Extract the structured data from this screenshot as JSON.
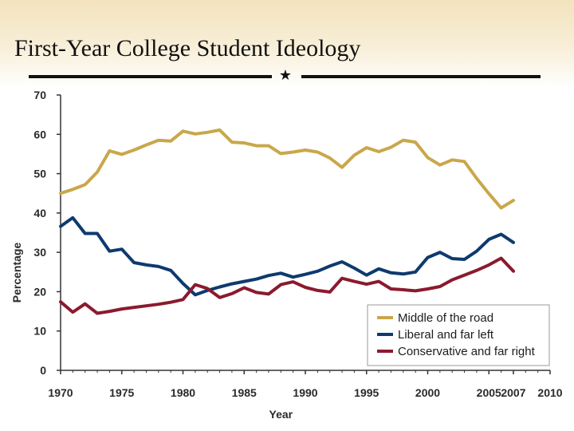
{
  "slide": {
    "title": "First-Year College Student Ideology",
    "star_icon": "★"
  },
  "chart_data": {
    "type": "line",
    "title": "",
    "xlabel": "Year",
    "ylabel": "Percentage",
    "xlim": [
      1970,
      2010
    ],
    "ylim": [
      0,
      70
    ],
    "x_ticks": [
      1970,
      1975,
      1980,
      1985,
      1990,
      1995,
      2000,
      2005,
      2007,
      2010
    ],
    "y_ticks": [
      0,
      10,
      20,
      30,
      40,
      50,
      60,
      70
    ],
    "legend_position": "bottom-right",
    "grid": false,
    "series": [
      {
        "name": "Middle of the road",
        "color": "#c9a74a",
        "x": [
          1970,
          1971,
          1972,
          1973,
          1974,
          1975,
          1976,
          1977,
          1978,
          1979,
          1980,
          1981,
          1982,
          1983,
          1984,
          1985,
          1986,
          1987,
          1988,
          1989,
          1990,
          1991,
          1992,
          1993,
          1994,
          1995,
          1996,
          1997,
          1998,
          1999,
          2000,
          2001,
          2002,
          2003,
          2004,
          2005,
          2006,
          2007
        ],
        "y": [
          45.0,
          46.0,
          47.2,
          50.4,
          55.8,
          54.9,
          56.0,
          57.3,
          58.5,
          58.3,
          60.8,
          60.1,
          60.5,
          61.1,
          58.0,
          57.8,
          57.1,
          57.1,
          55.1,
          55.5,
          56.0,
          55.5,
          54.0,
          51.6,
          54.7,
          56.6,
          55.6,
          56.7,
          58.5,
          58.0,
          54.1,
          52.2,
          53.5,
          53.1,
          48.8,
          44.9,
          41.3,
          43.2
        ]
      },
      {
        "name": "Liberal and far left",
        "color": "#0e3a6e",
        "x": [
          1970,
          1971,
          1972,
          1973,
          1974,
          1975,
          1976,
          1977,
          1978,
          1979,
          1980,
          1981,
          1982,
          1983,
          1984,
          1985,
          1986,
          1987,
          1988,
          1989,
          1990,
          1991,
          1992,
          1993,
          1994,
          1995,
          1996,
          1997,
          1998,
          1999,
          2000,
          2001,
          2002,
          2003,
          2004,
          2005,
          2006,
          2007
        ],
        "y": [
          36.6,
          38.8,
          34.8,
          34.8,
          30.3,
          30.8,
          27.4,
          26.8,
          26.4,
          25.4,
          22.1,
          19.2,
          20.3,
          21.2,
          22.0,
          22.6,
          23.2,
          24.1,
          24.7,
          23.7,
          24.4,
          25.2,
          26.5,
          27.6,
          26.0,
          24.2,
          25.8,
          24.8,
          24.5,
          25.0,
          28.7,
          30.0,
          28.4,
          28.2,
          30.3,
          33.3,
          34.6,
          32.5
        ]
      },
      {
        "name": "Conservative and far right",
        "color": "#8b1a2e",
        "x": [
          1970,
          1971,
          1972,
          1973,
          1974,
          1975,
          1976,
          1977,
          1978,
          1979,
          1980,
          1981,
          1982,
          1983,
          1984,
          1985,
          1986,
          1987,
          1988,
          1989,
          1990,
          1991,
          1992,
          1993,
          1994,
          1995,
          1996,
          1997,
          1998,
          1999,
          2000,
          2001,
          2002,
          2003,
          2004,
          2005,
          2006,
          2007
        ],
        "y": [
          17.4,
          14.8,
          16.9,
          14.5,
          15.0,
          15.6,
          16.0,
          16.4,
          16.8,
          17.3,
          18.0,
          21.8,
          20.8,
          18.5,
          19.5,
          21.0,
          19.8,
          19.4,
          21.8,
          22.5,
          21.1,
          20.3,
          19.9,
          23.4,
          22.6,
          21.9,
          22.6,
          20.7,
          20.5,
          20.2,
          20.7,
          21.3,
          23.0,
          24.2,
          25.4,
          26.8,
          28.5,
          25.2
        ]
      }
    ]
  }
}
